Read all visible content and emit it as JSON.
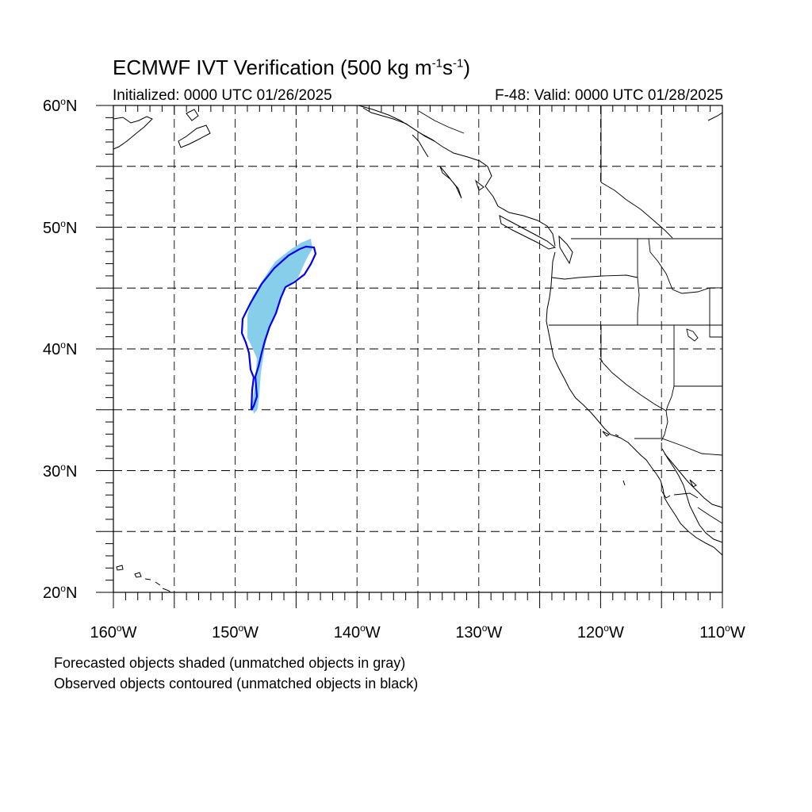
{
  "title": {
    "main": "ECMWF IVT Verification (500 kg m",
    "exp1": "-1",
    "mid": "s",
    "exp2": "-1",
    "end": ")"
  },
  "initialized": "Initialized: 0000 UTC 01/26/2025",
  "valid": "F-48: Valid: 0000 UTC 01/28/2025",
  "lat_ticks": [
    {
      "num": "60",
      "hem": "N"
    },
    {
      "num": "50",
      "hem": "N"
    },
    {
      "num": "40",
      "hem": "N"
    },
    {
      "num": "30",
      "hem": "N"
    },
    {
      "num": "20",
      "hem": "N"
    }
  ],
  "lon_ticks": [
    {
      "num": "160",
      "hem": "W"
    },
    {
      "num": "150",
      "hem": "W"
    },
    {
      "num": "140",
      "hem": "W"
    },
    {
      "num": "130",
      "hem": "W"
    },
    {
      "num": "120",
      "hem": "W"
    },
    {
      "num": "110",
      "hem": "W"
    }
  ],
  "degree_symbol": "o",
  "legend": {
    "line1": "Forecasted objects shaded (unmatched objects in gray)",
    "line2": "Observed objects contoured (unmatched objects in black)"
  },
  "map": {
    "lon_range": [
      -160,
      -110
    ],
    "lat_range": [
      20,
      60
    ],
    "grid_spacing_deg": 5,
    "forecast_fill_color": "#87ceeb",
    "observed_contour_color": "#0000ee",
    "coast_color": "#000000",
    "grid_style": "dashed"
  }
}
